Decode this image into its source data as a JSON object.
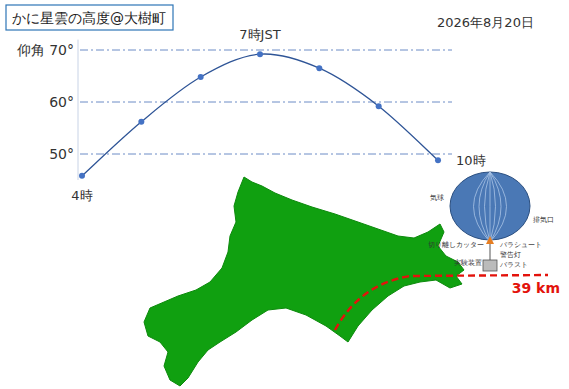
{
  "chart_data": {
    "type": "line",
    "title": "かに星雲の高度@大樹町",
    "subtitle": "2026年8月20日",
    "x": [
      4,
      5,
      6,
      7,
      8,
      9,
      10
    ],
    "values": [
      45.8,
      56.2,
      64.8,
      69.2,
      66.5,
      59.2,
      48.8
    ],
    "color": "#2f5597",
    "marker": "circle",
    "xlim": [
      4,
      10
    ],
    "xticks": [
      {
        "value": 4,
        "label": "4時"
      },
      {
        "value": 7,
        "label": "7時JST"
      },
      {
        "value": 10,
        "label": "10時"
      }
    ],
    "ylim": [
      45,
      72
    ],
    "yticks": [
      {
        "value": 50,
        "label": "50°"
      },
      {
        "value": 60,
        "label": "60°"
      },
      {
        "value": 70,
        "label": "仰角 70°"
      }
    ],
    "grid": true,
    "annotation": "39 km",
    "diagram_labels": [
      "気球",
      "排気口",
      "切り離しカッター",
      "パラシュート",
      "警告灯",
      "実験装置",
      "バラスト"
    ]
  }
}
